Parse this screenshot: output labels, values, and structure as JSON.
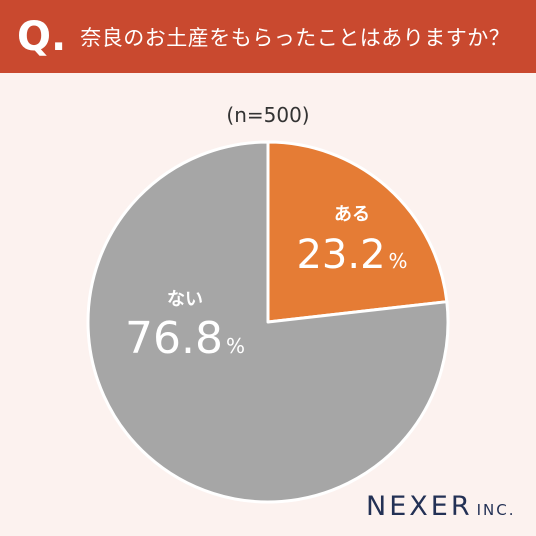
{
  "header": {
    "q_mark": "Q.",
    "question": "奈良のお土産をもらったことはありますか？"
  },
  "sample_label": "(n=500)",
  "brand": {
    "name": "NEXER",
    "suffix": "INC."
  },
  "colors": {
    "header_bg": "#c9492f",
    "page_bg": "#fcf2ef",
    "slice_yes": "#e57c35",
    "slice_no": "#a6a6a6",
    "brand": "#233155"
  },
  "chart_data": {
    "type": "pie",
    "title": "",
    "slices": [
      {
        "label": "ある",
        "value": 23.2,
        "display": "23.2",
        "unit": "%",
        "color": "#e57c35"
      },
      {
        "label": "ない",
        "value": 76.8,
        "display": "76.8",
        "unit": "%",
        "color": "#a6a6a6"
      }
    ]
  }
}
